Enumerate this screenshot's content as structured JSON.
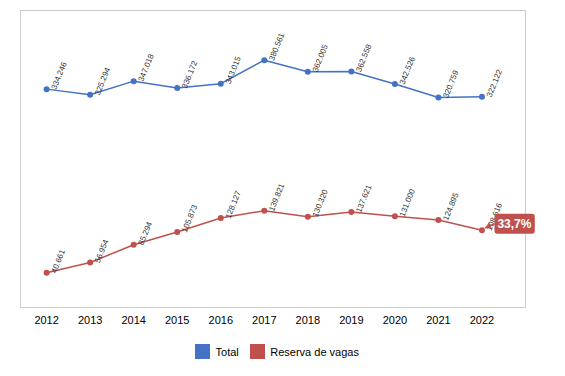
{
  "chart_data": {
    "type": "line",
    "x": [
      2012,
      2013,
      2014,
      2015,
      2016,
      2017,
      2018,
      2019,
      2020,
      2021,
      2022
    ],
    "xlim": [
      2011.4,
      2023.0
    ],
    "xticks": [
      2012,
      2013,
      2014,
      2015,
      2016,
      2017,
      2018,
      2019,
      2020,
      2021,
      2022
    ],
    "ylim": [
      -15000,
      460000
    ],
    "tick_labels": "x",
    "grid": false,
    "legend": "bottom",
    "data_labels": true,
    "marker": "circle",
    "series": [
      {
        "name": "Total",
        "color": "#4472C4",
        "values": [
          334246,
          325294,
          347018,
          336172,
          343015,
          380561,
          362005,
          362558,
          342526,
          320759,
          322122
        ],
        "value_labels": [
          "334.246",
          "325.294",
          "347.018",
          "336.172",
          "343.015",
          "380.561",
          "362.005",
          "362.558",
          "342.526",
          "320.759",
          "322.122"
        ]
      },
      {
        "name": "Reserva de vagas",
        "color": "#C0504D",
        "values": [
          40661,
          56954,
          85294,
          105873,
          128127,
          139821,
          130320,
          137621,
          131000,
          124895,
          108616
        ],
        "value_labels": [
          "40.661",
          "56.954",
          "85.294",
          "105.873",
          "128.127",
          "139.821",
          "130.320",
          "137.621",
          "131.000",
          "124.895",
          "108.616"
        ]
      }
    ],
    "annotations": [
      {
        "text": "33,7%",
        "x": 2022,
        "y": 108616,
        "color": "#C0504D"
      }
    ]
  }
}
